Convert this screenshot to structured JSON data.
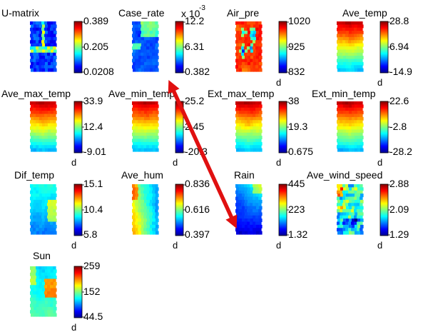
{
  "figure": {
    "panels": [
      {
        "id": "umatrix",
        "title": "U-matrix",
        "ticks": [
          "0.389",
          "0.205",
          "0.0208"
        ],
        "units_label": "",
        "multiplier": "",
        "pattern": "umatrix"
      },
      {
        "id": "case_rate",
        "title": "Case_rate",
        "ticks": [
          "12.2",
          "6.31",
          "0.382"
        ],
        "units_label": "",
        "multiplier": "x 10",
        "multiplier_exp": "-3",
        "pattern": "low_patchy"
      },
      {
        "id": "air_pre",
        "title": "Air_pre",
        "ticks": [
          "1020",
          "925",
          "832"
        ],
        "units_label": "d",
        "multiplier": "",
        "pattern": "high_with_holes"
      },
      {
        "id": "ave_temp",
        "title": "Ave_temp",
        "ticks": [
          "28.8",
          "6.94",
          "-14.9"
        ],
        "units_label": "d",
        "multiplier": "",
        "pattern": "gradient_down"
      },
      {
        "id": "ave_max_temp",
        "title": "Ave_max_temp",
        "ticks": [
          "33.9",
          "12.4",
          "-9.01"
        ],
        "units_label": "d",
        "multiplier": "",
        "pattern": "gradient_down"
      },
      {
        "id": "ave_min_temp",
        "title": "Ave_min_temp",
        "ticks": [
          "25.2",
          "2.45",
          "-20.3"
        ],
        "units_label": "d",
        "multiplier": "",
        "pattern": "gradient_down"
      },
      {
        "id": "ext_max_temp",
        "title": "Ext_max_temp",
        "ticks": [
          "38",
          "19.3",
          "0.675"
        ],
        "units_label": "d",
        "multiplier": "",
        "pattern": "gradient_down"
      },
      {
        "id": "ext_min_temp",
        "title": "Ext_min_temp",
        "ticks": [
          "22.6",
          "-2.8",
          "-28.2"
        ],
        "units_label": "d",
        "multiplier": "",
        "pattern": "gradient_down"
      },
      {
        "id": "dif_temp",
        "title": "Dif_temp",
        "ticks": [
          "15.1",
          "10.4",
          "5.8"
        ],
        "units_label": "d",
        "multiplier": "",
        "pattern": "dif"
      },
      {
        "id": "ave_hum",
        "title": "Ave_hum",
        "ticks": [
          "0.836",
          "0.616",
          "0.397"
        ],
        "units_label": "d",
        "multiplier": "",
        "pattern": "hum"
      },
      {
        "id": "rain",
        "title": "Rain",
        "ticks": [
          "445",
          "223",
          "1.32"
        ],
        "units_label": "d",
        "multiplier": "",
        "pattern": "rain"
      },
      {
        "id": "ave_wind_speed",
        "title": "Ave_wind_speed",
        "ticks": [
          "2.88",
          "2.09",
          "1.29"
        ],
        "units_label": "d",
        "multiplier": "",
        "pattern": "wind"
      },
      {
        "id": "sun",
        "title": "Sun",
        "ticks": [
          "259",
          "152",
          "44.5"
        ],
        "units_label": "d",
        "multiplier": "",
        "pattern": "sun"
      }
    ],
    "arrow": {
      "color": "#e01010",
      "connects": [
        "Case_rate",
        "Rain"
      ]
    }
  },
  "chart_data": {
    "type": "heatmap",
    "title": "",
    "colormap": "jet",
    "series": [
      {
        "name": "U-matrix",
        "range": [
          0.0208,
          0.389
        ]
      },
      {
        "name": "Case_rate",
        "range": [
          0.000382,
          0.0122
        ]
      },
      {
        "name": "Air_pre",
        "range": [
          832,
          1020
        ]
      },
      {
        "name": "Ave_temp",
        "range": [
          -14.9,
          28.8
        ]
      },
      {
        "name": "Ave_max_temp",
        "range": [
          -9.01,
          33.9
        ]
      },
      {
        "name": "Ave_min_temp",
        "range": [
          -20.3,
          25.2
        ]
      },
      {
        "name": "Ext_max_temp",
        "range": [
          0.675,
          38
        ]
      },
      {
        "name": "Ext_min_temp",
        "range": [
          -28.2,
          22.6
        ]
      },
      {
        "name": "Dif_temp",
        "range": [
          5.8,
          15.1
        ]
      },
      {
        "name": "Ave_hum",
        "range": [
          0.397,
          0.836
        ]
      },
      {
        "name": "Rain",
        "range": [
          1.32,
          445
        ]
      },
      {
        "name": "Ave_wind_speed",
        "range": [
          1.29,
          2.88
        ]
      },
      {
        "name": "Sun",
        "range": [
          44.5,
          259
        ]
      }
    ]
  }
}
